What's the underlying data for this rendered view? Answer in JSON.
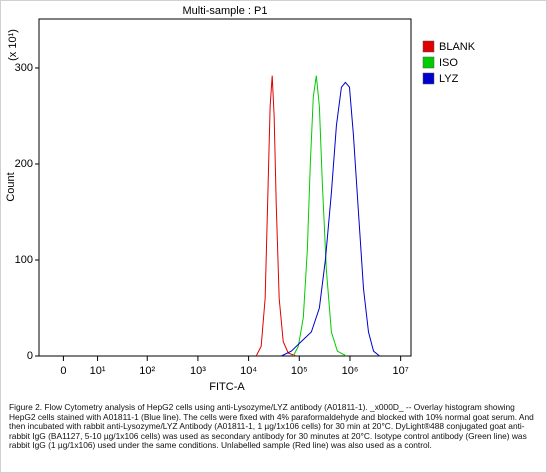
{
  "chart_data": {
    "type": "line",
    "title": "Multi-sample : P1",
    "xlabel": "FITC-A",
    "ylabel": "Count",
    "y_multiplier": "(x 10¹)",
    "xscale": "biexponential",
    "xlim": [
      -6,
      16000000
    ],
    "ylim": [
      0,
      351
    ],
    "yticks": [
      0,
      100,
      200,
      300
    ],
    "xticks": [
      0,
      {
        "value": 10,
        "label": "10¹"
      },
      {
        "value": 100,
        "label": "10²"
      },
      {
        "value": 1000,
        "label": "10³"
      },
      {
        "value": 10000,
        "label": "10⁴"
      },
      {
        "value": 100000,
        "label": "10⁵"
      },
      {
        "value": 1000000,
        "label": "10⁶"
      },
      {
        "value": 10000000,
        "label": "10⁷"
      }
    ],
    "legend": "upper right",
    "series": [
      {
        "name": "BLANK",
        "color": "#e00000",
        "x": [
          14100,
          17700,
          21200,
          24300,
          26600,
          29200,
          31900,
          35000,
          40100,
          48200,
          60600,
          87200
        ],
        "values": [
          0,
          10,
          60,
          180,
          260,
          292,
          250,
          160,
          60,
          15,
          3,
          0
        ]
      },
      {
        "name": "ISO",
        "color": "#00cc00",
        "x": [
          76100,
          95600,
          120000,
          144000,
          165000,
          189000,
          217000,
          249000,
          285000,
          342000,
          430000,
          565000,
          852000
        ],
        "values": [
          0,
          10,
          40,
          110,
          200,
          270,
          292,
          260,
          180,
          90,
          25,
          5,
          0
        ]
      },
      {
        "name": "LYZ",
        "color": "#0000cc",
        "x": [
          44000,
          69400,
          109000,
          173000,
          249000,
          327000,
          430000,
          540000,
          678000,
          813000,
          978000,
          1170000,
          1470000,
          1850000,
          2320000,
          2920000,
          3840000
        ],
        "values": [
          0,
          5,
          15,
          25,
          50,
          100,
          170,
          240,
          280,
          285,
          280,
          230,
          150,
          70,
          25,
          5,
          0
        ]
      }
    ]
  },
  "caption": "Figure 2. Flow Cytometry analysis of HepG2 cells using anti-Lysozyme/LYZ antibody (A01811-1). _x000D_ -- Overlay histogram showing HepG2 cells stained with A01811-1 (Blue line). The cells were fixed with 4% paraformaldehyde and blocked with 10% normal goat serum. And then incubated with rabbit anti-Lysozyme/LYZ Antibody (A01811-1, 1 µg/1x106 cells) for 30 min at 20°C. DyLight®488 conjugated goat anti-rabbit IgG (BA1127, 5-10 µg/1x106 cells) was used as secondary antibody for 30 minutes at 20°C. Isotype control antibody (Green line) was rabbit IgG (1 µg/1x106) used under the same conditions. Unlabelled sample (Red line) was also used as a control."
}
